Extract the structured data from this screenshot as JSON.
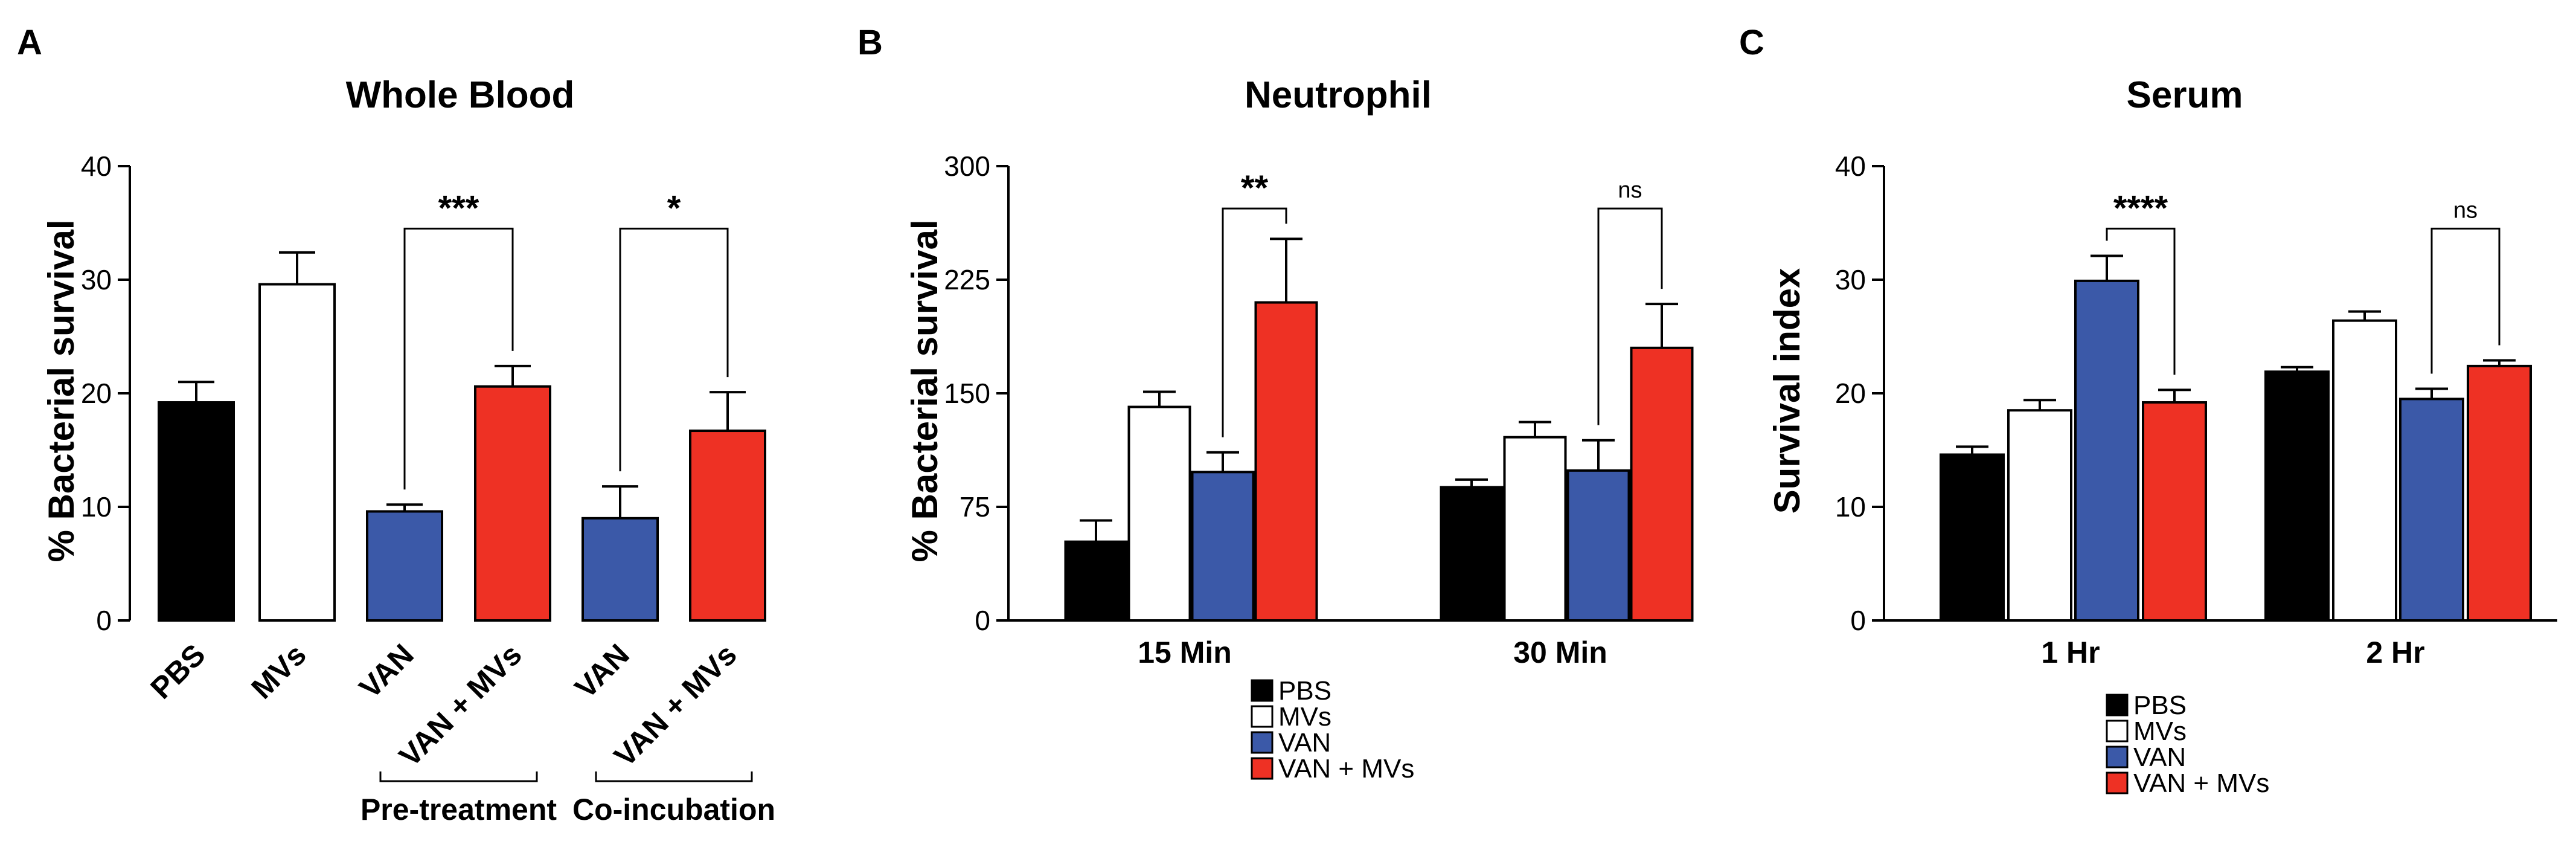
{
  "colors": {
    "PBS": "#000000",
    "MVs": "#ffffff",
    "VAN": "#3b59a8",
    "VAN + MVs": "#ee3124"
  },
  "chart_data": [
    {
      "panel": "A",
      "type": "bar",
      "title": "Whole Blood",
      "ylabel": "% Bacterial survival",
      "xlabel": "",
      "ylim": [
        0,
        40
      ],
      "yticks": [
        "0",
        "10",
        "20",
        "30",
        "40"
      ],
      "bars": [
        {
          "label": "PBS",
          "value": 19.2,
          "error": 1.8,
          "color_key": "PBS"
        },
        {
          "label": "MVs",
          "value": 29.6,
          "error": 2.8,
          "color_key": "MVs"
        },
        {
          "label": "VAN",
          "value": 9.6,
          "error": 0.6,
          "color_key": "VAN"
        },
        {
          "label": "VAN + MVs",
          "value": 20.6,
          "error": 1.8,
          "color_key": "VAN + MVs"
        },
        {
          "label": "VAN",
          "value": 9.0,
          "error": 2.8,
          "color_key": "VAN"
        },
        {
          "label": "VAN + MVs",
          "value": 16.7,
          "error": 3.4,
          "color_key": "VAN + MVs"
        }
      ],
      "brackets": [
        {
          "label": "Pre-treatment",
          "from": 2,
          "to": 3
        },
        {
          "label": "Co-incubation",
          "from": 4,
          "to": 5
        }
      ],
      "significance": [
        {
          "from": 2,
          "to": 3,
          "label": "***",
          "level": 34.5
        },
        {
          "from": 4,
          "to": 5,
          "label": "*",
          "level": 34.5
        }
      ]
    },
    {
      "panel": "B",
      "type": "bar",
      "title": "Neutrophil",
      "ylabel": "% Bacterial survival",
      "xlabel": "",
      "ylim": [
        0,
        300
      ],
      "yticks": [
        "0",
        "75",
        "150",
        "225",
        "300"
      ],
      "groups": [
        "15 Min",
        "30 Min"
      ],
      "series": [
        {
          "name": "PBS",
          "values": [
            52,
            88
          ],
          "errors": [
            14,
            5
          ]
        },
        {
          "name": "MVs",
          "values": [
            141,
            121
          ],
          "errors": [
            10,
            10
          ]
        },
        {
          "name": "VAN",
          "values": [
            98,
            99
          ],
          "errors": [
            13,
            20
          ]
        },
        {
          "name": "VAN + MVs",
          "values": [
            210,
            180
          ],
          "errors": [
            42,
            29
          ]
        }
      ],
      "significance": [
        {
          "group": 0,
          "from": 2,
          "to": 3,
          "label": "**",
          "level": 272
        },
        {
          "group": 1,
          "from": 2,
          "to": 3,
          "label": "ns",
          "level": 272
        }
      ],
      "legend": [
        "PBS",
        "MVs",
        "VAN",
        "VAN + MVs"
      ]
    },
    {
      "panel": "C",
      "type": "bar",
      "title": "Serum",
      "ylabel": "Survival index",
      "xlabel": "",
      "ylim": [
        0,
        40
      ],
      "yticks": [
        "0",
        "10",
        "20",
        "30",
        "40"
      ],
      "groups": [
        "1 Hr",
        "2 Hr"
      ],
      "series": [
        {
          "name": "PBS",
          "values": [
            14.6,
            21.9
          ],
          "errors": [
            0.7,
            0.4
          ]
        },
        {
          "name": "MVs",
          "values": [
            18.5,
            26.4
          ],
          "errors": [
            0.9,
            0.8
          ]
        },
        {
          "name": "VAN",
          "values": [
            29.9,
            19.5
          ],
          "errors": [
            2.2,
            0.9
          ]
        },
        {
          "name": "VAN + MVs",
          "values": [
            19.2,
            22.4
          ],
          "errors": [
            1.1,
            0.5
          ]
        }
      ],
      "significance": [
        {
          "group": 0,
          "from": 2,
          "to": 3,
          "label": "****",
          "level": 34.5
        },
        {
          "group": 1,
          "from": 2,
          "to": 3,
          "label": "ns",
          "level": 34.5
        }
      ],
      "legend": [
        "PBS",
        "MVs",
        "VAN",
        "VAN + MVs"
      ]
    }
  ]
}
